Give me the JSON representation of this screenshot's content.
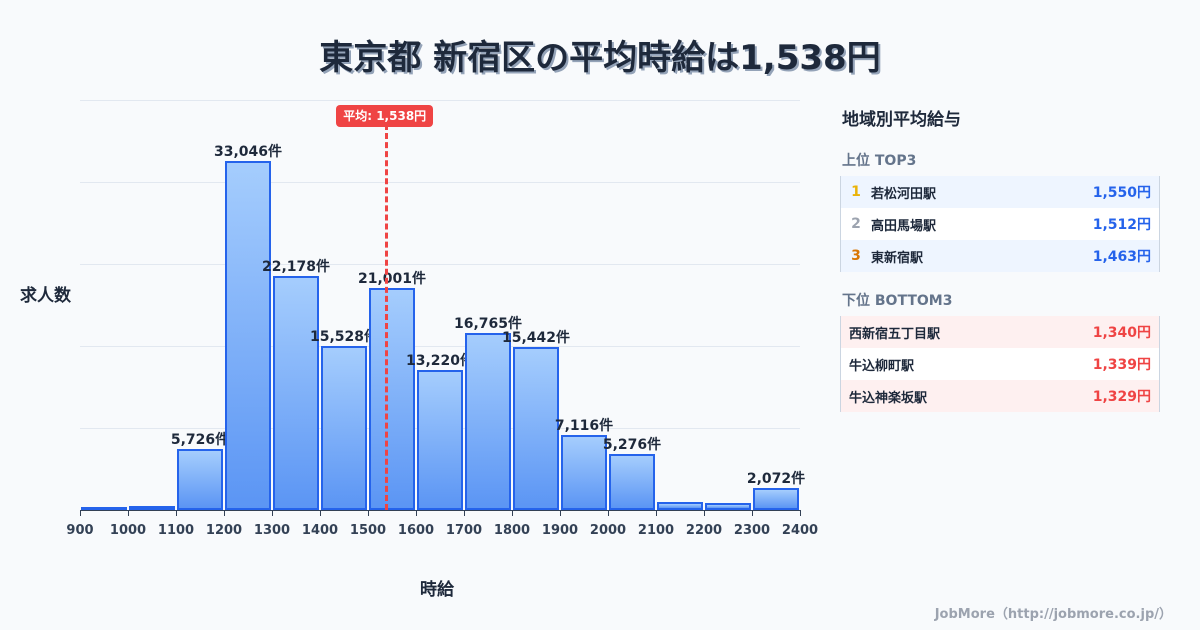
{
  "title": "東京都 新宿区の平均時給は1,538円",
  "chart_data": {
    "type": "bar",
    "title": "東京都 新宿区の平均時給は1,538円",
    "xlabel": "時給",
    "ylabel": "求人数",
    "categories": [
      "900-1000",
      "1000-1100",
      "1100-1200",
      "1200-1300",
      "1300-1400",
      "1400-1500",
      "1500-1600",
      "1600-1700",
      "1700-1800",
      "1800-1900",
      "1900-2000",
      "2000-2100",
      "2100-2200",
      "2200-2300",
      "2300-2400"
    ],
    "bin_edges": [
      900,
      1000,
      1100,
      1200,
      1300,
      1400,
      1500,
      1600,
      1700,
      1800,
      1900,
      2000,
      2100,
      2200,
      2300,
      2400
    ],
    "values": [
      190,
      350,
      5726,
      33046,
      22178,
      15528,
      21001,
      13220,
      16765,
      15442,
      7116,
      5276,
      750,
      650,
      2072
    ],
    "labels": [
      "",
      "",
      "5,726件",
      "33,046件",
      "22,178件",
      "15,528件",
      "21,001件",
      "13,220件",
      "16,765件",
      "15,442件",
      "7,116件",
      "5,276件",
      "",
      "",
      "2,072件"
    ],
    "x_ticks": [
      "900",
      "1000",
      "1100",
      "1200",
      "1300",
      "1400",
      "1500",
      "1600",
      "1700",
      "1800",
      "1900",
      "2000",
      "2100",
      "2200",
      "2300",
      "2400"
    ],
    "xlim": [
      900,
      2400
    ],
    "ylim": [
      0,
      38800
    ],
    "grid": true,
    "mean_line": {
      "value": 1538,
      "label": "平均: 1,538円",
      "color": "#ef4444"
    },
    "bar_color": "#60a5fa",
    "bar_edge_color": "#2563eb"
  },
  "axis": {
    "ylabel": "求人数",
    "xlabel": "時給"
  },
  "mean_badge": "平均: 1,538円",
  "panel": {
    "title": "地域別平均給与",
    "top": {
      "heading": "上位 TOP3",
      "rows": [
        {
          "rank": "1",
          "rank_color": "#eab308",
          "name": "若松河田駅",
          "value": "1,550円"
        },
        {
          "rank": "2",
          "rank_color": "#9ca3af",
          "name": "高田馬場駅",
          "value": "1,512円"
        },
        {
          "rank": "3",
          "rank_color": "#d97706",
          "name": "東新宿駅",
          "value": "1,463円"
        }
      ]
    },
    "bottom": {
      "heading": "下位 BOTTOM3",
      "rows": [
        {
          "name": "西新宿五丁目駅",
          "value": "1,340円"
        },
        {
          "name": "牛込柳町駅",
          "value": "1,339円"
        },
        {
          "name": "牛込神楽坂駅",
          "value": "1,329円"
        }
      ]
    }
  },
  "footer": "JobMore（http://jobmore.co.jp/）"
}
